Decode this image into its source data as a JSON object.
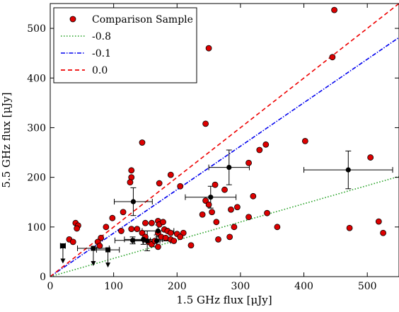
{
  "chart_data": {
    "type": "scatter",
    "title": "",
    "xlabel": "1.5 GHz flux [μJy]",
    "ylabel": "5.5 GHz flux [μJy]",
    "xlim": [
      0,
      550
    ],
    "ylim": [
      0,
      550
    ],
    "x_ticks": [
      0,
      100,
      200,
      300,
      400,
      500
    ],
    "y_ticks": [
      0,
      100,
      200,
      300,
      400,
      500
    ],
    "grid": false,
    "legend_position": "top-left",
    "legend": {
      "comparison": "Comparison Sample",
      "line_a": "-0.8",
      "line_b": "-0.1",
      "line_c": "0.0"
    },
    "lines": [
      {
        "label": "-0.8",
        "slope": 0.3669,
        "color": "#22a022",
        "style": "dotted"
      },
      {
        "label": "-0.1",
        "slope": 0.8757,
        "color": "#0000ee",
        "style": "dashdot"
      },
      {
        "label": "0.0",
        "slope": 1.0,
        "color": "#ee0000",
        "style": "dashed"
      }
    ],
    "comparison_sample": {
      "name": "Comparison Sample",
      "color": "#dd0000",
      "points": [
        [
          448,
          537
        ],
        [
          250,
          460
        ],
        [
          445,
          442
        ],
        [
          245,
          308
        ],
        [
          145,
          270
        ],
        [
          402,
          273
        ],
        [
          340,
          266
        ],
        [
          330,
          255
        ],
        [
          505,
          240
        ],
        [
          313,
          229
        ],
        [
          128,
          214
        ],
        [
          128,
          200
        ],
        [
          190,
          205
        ],
        [
          126,
          190
        ],
        [
          172,
          188
        ],
        [
          205,
          182
        ],
        [
          260,
          185
        ],
        [
          275,
          175
        ],
        [
          320,
          162
        ],
        [
          295,
          140
        ],
        [
          245,
          153
        ],
        [
          250,
          145
        ],
        [
          240,
          125
        ],
        [
          255,
          130
        ],
        [
          285,
          135
        ],
        [
          115,
          130
        ],
        [
          342,
          128
        ],
        [
          313,
          120
        ],
        [
          262,
          110
        ],
        [
          40,
          108
        ],
        [
          44,
          103
        ],
        [
          42,
          97
        ],
        [
          88,
          100
        ],
        [
          98,
          118
        ],
        [
          112,
          92
        ],
        [
          128,
          96
        ],
        [
          137,
          96
        ],
        [
          145,
          88
        ],
        [
          150,
          108
        ],
        [
          160,
          108
        ],
        [
          170,
          112
        ],
        [
          172,
          105
        ],
        [
          178,
          110
        ],
        [
          180,
          95
        ],
        [
          185,
          92
        ],
        [
          190,
          88
        ],
        [
          200,
          86
        ],
        [
          210,
          88
        ],
        [
          170,
          88
        ],
        [
          175,
          80
        ],
        [
          182,
          78
        ],
        [
          190,
          75
        ],
        [
          195,
          72
        ],
        [
          205,
          80
        ],
        [
          148,
          75
        ],
        [
          150,
          80
        ],
        [
          155,
          70
        ],
        [
          160,
          65
        ],
        [
          165,
          72
        ],
        [
          170,
          60
        ],
        [
          222,
          63
        ],
        [
          265,
          75
        ],
        [
          283,
          80
        ],
        [
          290,
          100
        ],
        [
          358,
          100
        ],
        [
          472,
          98
        ],
        [
          518,
          111
        ],
        [
          525,
          88
        ],
        [
          80,
          78
        ],
        [
          75,
          70
        ],
        [
          30,
          75
        ],
        [
          36,
          70
        ],
        [
          78,
          62
        ]
      ]
    },
    "detections": {
      "color": "#000000",
      "points": [
        {
          "x": 470,
          "y": 215,
          "xerr": 70,
          "yerr": 38
        },
        {
          "x": 282,
          "y": 220,
          "xerr": 32,
          "yerr": 35
        },
        {
          "x": 253,
          "y": 160,
          "xerr": 40,
          "yerr": 22
        },
        {
          "x": 131,
          "y": 151,
          "xerr": 30,
          "yerr": 28
        },
        {
          "x": 147,
          "y": 75,
          "xerr": 30,
          "yerr": 10
        },
        {
          "x": 153,
          "y": 72,
          "xerr": 20,
          "yerr": 20
        },
        {
          "x": 170,
          "y": 92,
          "xerr": 25,
          "yerr": 12
        },
        {
          "x": 130,
          "y": 73,
          "xerr": 28,
          "yerr": 7
        },
        {
          "x": 168,
          "y": 72,
          "xerr": 22,
          "yerr": 12
        }
      ]
    },
    "upper_limits": {
      "color": "#000000",
      "points": [
        {
          "x": 20,
          "y": 62,
          "xerr": 4
        },
        {
          "x": 68,
          "y": 57,
          "xerr": 25
        },
        {
          "x": 91,
          "y": 54,
          "xerr": 18
        }
      ]
    }
  }
}
